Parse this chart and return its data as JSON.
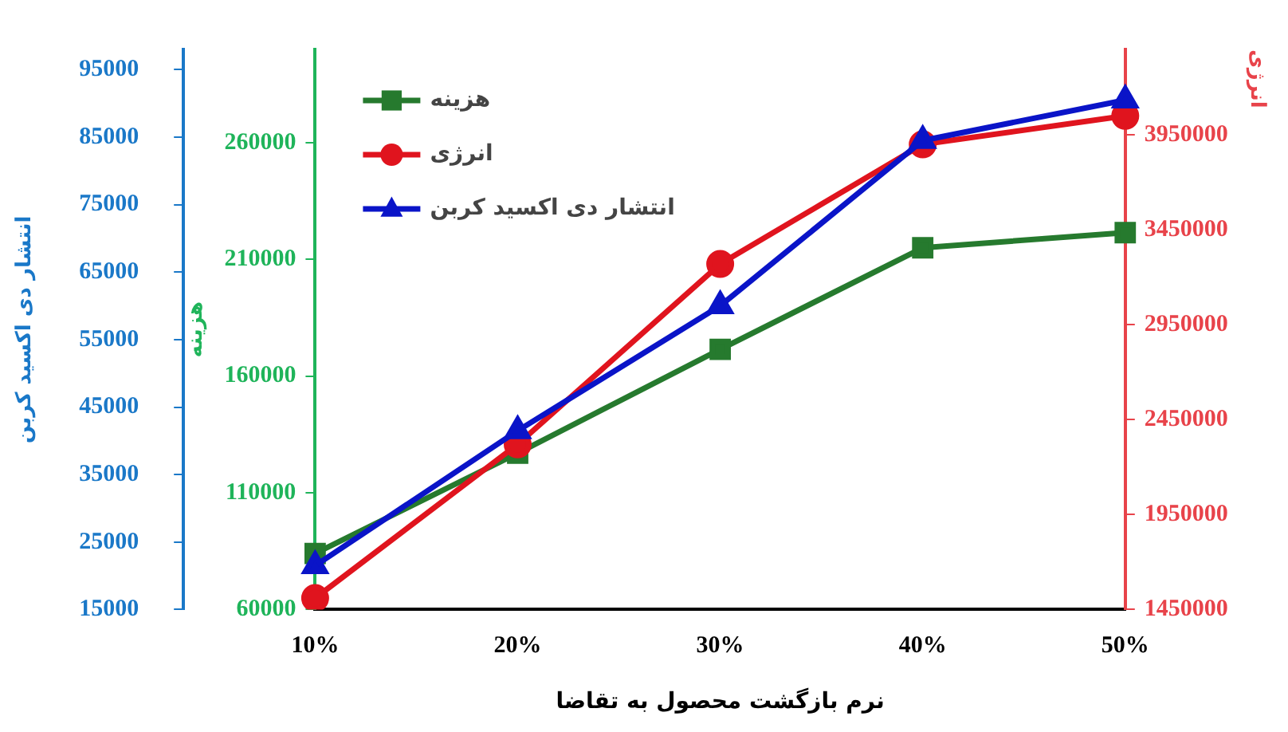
{
  "chart_data": {
    "type": "line",
    "xlabel": "نرم بازگشت محصول به تقاضا",
    "ylabel": "هزینه",
    "y2label": "انتشار دی اکسید کربن",
    "y3label": "انرژی",
    "categories": [
      "10%",
      "20%",
      "30%",
      "40%",
      "50%"
    ],
    "series": [
      {
        "name": "هزینه",
        "color": "#267a2e",
        "marker": "square",
        "axis": "y",
        "values": [
          84000,
          127000,
          171500,
          215000,
          221500
        ]
      },
      {
        "name": "انرژی",
        "color": "#e0141e",
        "marker": "circle",
        "axis": "y3",
        "values": [
          1510000,
          2320000,
          3270000,
          3900000,
          4050000
        ]
      },
      {
        "name": "انتشار دی اکسید کربن",
        "color": "#0a14c8",
        "marker": "triangle",
        "axis": "y2",
        "values": [
          21500,
          41500,
          60000,
          84500,
          90500
        ]
      }
    ],
    "ylim": [
      60000,
      300000
    ],
    "yticks": [
      60000,
      110000,
      160000,
      210000,
      260000
    ],
    "y2lim": [
      15000,
      98000
    ],
    "y2ticks": [
      15000,
      25000,
      35000,
      45000,
      55000,
      65000,
      75000,
      85000,
      95000
    ],
    "y3lim": [
      1450000,
      4400000
    ],
    "y3ticks": [
      1450000,
      1950000,
      2450000,
      2950000,
      3450000,
      3950000
    ],
    "grid": false,
    "legend": "top left",
    "line_style": "solid"
  }
}
